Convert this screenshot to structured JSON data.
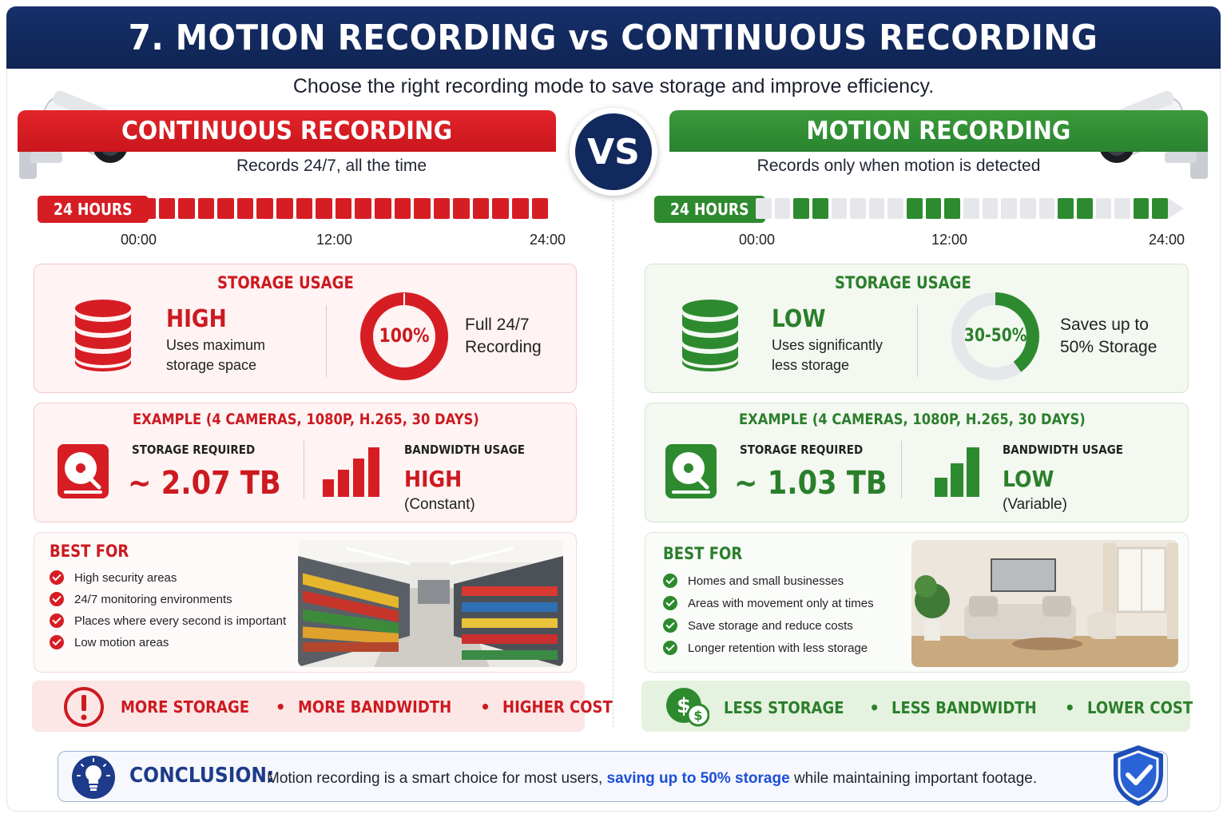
{
  "title": "7. MOTION RECORDING vs CONTINUOUS RECORDING",
  "subtitle": "Choose the right recording mode to save storage and improve efficiency.",
  "vs_label": "VS",
  "continuous": {
    "header": "CONTINUOUS RECORDING",
    "tagline": "Records 24/7, all the time",
    "hours_label": "24 HOURS",
    "timeline_ticks": [
      "00:00",
      "12:00",
      "24:00"
    ],
    "timeline_segments": [
      1,
      1,
      1,
      1,
      1,
      1,
      1,
      1,
      1,
      1,
      1,
      1,
      1,
      1,
      1,
      1,
      1,
      1,
      1,
      1,
      1
    ],
    "storage_usage": {
      "title": "STORAGE USAGE",
      "level": "HIGH",
      "description_line1": "Uses maximum",
      "description_line2": "storage space",
      "ring_value_label": "100%",
      "ring_fraction": 1.0,
      "ring_desc_line1": "Full 24/7",
      "ring_desc_line2": "Recording"
    },
    "example": {
      "title": "EXAMPLE (4 CAMERAS, 1080P, H.265, 30 DAYS)",
      "storage_label": "STORAGE REQUIRED",
      "storage_value": "~ 2.07 TB",
      "bandwidth_label": "BANDWIDTH USAGE",
      "bandwidth_level": "HIGH",
      "bandwidth_note": "(Constant)"
    },
    "best_for": {
      "title": "BEST FOR",
      "items": [
        "High security areas",
        "24/7 monitoring environments",
        "Places where every second is important",
        "Low motion areas"
      ]
    },
    "footer": {
      "item1": "MORE STORAGE",
      "item2": "MORE BANDWIDTH",
      "item3": "HIGHER COST",
      "separator": "•"
    }
  },
  "motion": {
    "header": "MOTION RECORDING",
    "tagline": "Records only when motion is detected",
    "hours_label": "24 HOURS",
    "timeline_ticks": [
      "00:00",
      "12:00",
      "24:00"
    ],
    "timeline_segments": [
      0,
      0,
      1,
      1,
      0,
      0,
      0,
      0,
      1,
      1,
      1,
      0,
      0,
      0,
      0,
      0,
      1,
      1,
      0,
      0,
      1,
      1
    ],
    "storage_usage": {
      "title": "STORAGE USAGE",
      "level": "LOW",
      "description_line1": "Uses significantly",
      "description_line2": "less storage",
      "ring_value_label": "30-50%",
      "ring_fraction": 0.4,
      "ring_desc_line1": "Saves up to",
      "ring_desc_line2": "50% Storage"
    },
    "example": {
      "title": "EXAMPLE (4 CAMERAS, 1080P, H.265, 30 DAYS)",
      "storage_label": "STORAGE REQUIRED",
      "storage_value": "~ 1.03 TB",
      "bandwidth_label": "BANDWIDTH USAGE",
      "bandwidth_level": "LOW",
      "bandwidth_note": "(Variable)"
    },
    "best_for": {
      "title": "BEST FOR",
      "items": [
        "Homes and small businesses",
        "Areas with movement only at times",
        "Save storage and reduce costs",
        "Longer retention with less storage"
      ]
    },
    "footer": {
      "item1": "LESS STORAGE",
      "item2": "LESS BANDWIDTH",
      "item3": "LOWER COST",
      "separator": "•"
    }
  },
  "conclusion": {
    "label": "CONCLUSION:",
    "text_before": "Motion recording is a smart choice for most users,",
    "text_highlight": "saving up to 50% storage",
    "text_after": "while maintaining important footage."
  },
  "colors": {
    "red": "#d71d24",
    "green": "#2e8a2f",
    "navy": "#12295e",
    "timeline_off": "#e6e7ea"
  }
}
